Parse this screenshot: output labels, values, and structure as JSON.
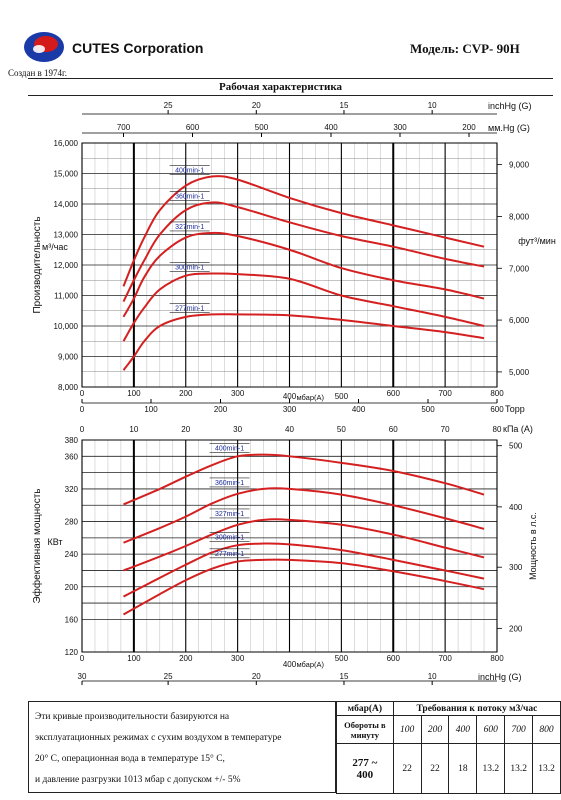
{
  "header": {
    "company": "CUTES Corporation",
    "founded": "Создан в 1974г.",
    "model": "Модель: CVP- 90H",
    "title": "Рабочая характеристика"
  },
  "colors": {
    "curve": "#d42020",
    "grid": "#000000",
    "logo_blue": "#1a3aa8",
    "logo_red": "#d41a1a"
  },
  "chart_data": [
    {
      "type": "line",
      "ylabel": "Производительность",
      "ylabel_unit": "м³/час",
      "ylabel_right": "фут³/мин",
      "xlabel": "мбар(А)",
      "xlim": [
        0,
        800
      ],
      "ylim": [
        8000,
        16000
      ],
      "y_ticks": [
        "8,000",
        "9,000",
        "10,000",
        "11,000",
        "12,000",
        "13,000",
        "14,000",
        "15,000",
        "16,000"
      ],
      "y_tick_values": [
        8000,
        9000,
        10000,
        11000,
        12000,
        13000,
        14000,
        15000,
        16000
      ],
      "y_right_ticks": [
        "5,000",
        "6,000",
        "7,000",
        "8,000",
        "9,000"
      ],
      "y_right_values": [
        8495,
        10194,
        11893,
        13592,
        15291
      ],
      "x_ticks": [
        "0",
        "100",
        "200",
        "300",
        "400",
        "500",
        "600",
        "700",
        "800"
      ],
      "x_tick_values": [
        0,
        100,
        200,
        300,
        400,
        500,
        600,
        700,
        800
      ],
      "top_axis_inchHg": {
        "label": "inchHg (G)",
        "ticks": [
          "25",
          "20",
          "15",
          "10"
        ],
        "mbar": [
          166,
          336,
          505,
          675
        ]
      },
      "top_axis_mmHg": {
        "label": "мм.Hg (G)",
        "ticks": [
          "700",
          "600",
          "500",
          "400",
          "300",
          "200"
        ],
        "mbar": [
          80,
          213,
          346,
          480,
          613,
          746
        ]
      },
      "bottom_axis_torr": {
        "label": "Торр",
        "ticks": [
          "0",
          "100",
          "200",
          "300",
          "400",
          "500",
          "600"
        ],
        "mbar": [
          0,
          133,
          267,
          400,
          533,
          667,
          800
        ]
      },
      "series": [
        {
          "name": "400min-1",
          "x": [
            80,
            100,
            120,
            150,
            200,
            250,
            300,
            400,
            500,
            600,
            700,
            775
          ],
          "values": [
            11300,
            12150,
            12900,
            13800,
            14600,
            14900,
            14800,
            14200,
            13700,
            13300,
            12900,
            12600
          ]
        },
        {
          "name": "360min-1",
          "x": [
            80,
            100,
            120,
            150,
            200,
            250,
            300,
            400,
            500,
            600,
            700,
            775
          ],
          "values": [
            10800,
            11500,
            12150,
            13000,
            13800,
            14050,
            13900,
            13400,
            12950,
            12600,
            12200,
            11950
          ]
        },
        {
          "name": "327min-1",
          "x": [
            80,
            100,
            120,
            150,
            200,
            250,
            300,
            400,
            500,
            600,
            700,
            775
          ],
          "values": [
            10300,
            10900,
            11600,
            12300,
            12900,
            13050,
            12950,
            12500,
            11900,
            11500,
            11200,
            10900
          ]
        },
        {
          "name": "300min-1",
          "x": [
            80,
            100,
            120,
            150,
            200,
            250,
            300,
            400,
            500,
            600,
            700,
            775
          ],
          "values": [
            9500,
            10100,
            10600,
            11200,
            11650,
            11720,
            11700,
            11550,
            11000,
            10650,
            10300,
            10000
          ]
        },
        {
          "name": "277min-1",
          "x": [
            80,
            100,
            120,
            150,
            200,
            250,
            300,
            400,
            500,
            600,
            700,
            775
          ],
          "values": [
            8550,
            9000,
            9500,
            10000,
            10300,
            10380,
            10380,
            10350,
            10200,
            10000,
            9800,
            9600
          ]
        }
      ]
    },
    {
      "type": "line",
      "ylabel": "Эффективная мощность",
      "ylabel_unit": "КВт",
      "ylabel_right": "Мощность в л.с.",
      "xlabel": "мбар(А)",
      "xlim": [
        0,
        800
      ],
      "ylim": [
        120,
        380
      ],
      "y_ticks": [
        "120",
        "160",
        "200",
        "240",
        "280",
        "320",
        "360",
        "380"
      ],
      "y_tick_values": [
        120,
        160,
        200,
        240,
        280,
        320,
        360,
        380
      ],
      "y_grid_values": [
        120,
        160,
        180,
        200,
        220,
        240,
        260,
        280,
        300,
        320,
        340,
        360,
        380
      ],
      "y_right_ticks": [
        "200",
        "300",
        "400",
        "500"
      ],
      "y_right_values": [
        149,
        224,
        298,
        373
      ],
      "x_ticks": [
        "0",
        "100",
        "200",
        "300",
        "400",
        "500",
        "600",
        "700",
        "800"
      ],
      "x_tick_values": [
        0,
        100,
        200,
        300,
        400,
        500,
        600,
        700,
        800
      ],
      "top_axis_kPa": {
        "label": "кПа (A)",
        "ticks": [
          "0",
          "10",
          "20",
          "30",
          "40",
          "50",
          "60",
          "70",
          "80"
        ],
        "mbar": [
          0,
          100,
          200,
          300,
          400,
          500,
          600,
          700,
          800
        ]
      },
      "bottom_axis_inchHg": {
        "label": "inchHg (G)",
        "ticks": [
          "30",
          "25",
          "20",
          "15",
          "10"
        ],
        "mbar": [
          0,
          166,
          336,
          505,
          675
        ]
      },
      "series": [
        {
          "name": "400min-1",
          "x": [
            80,
            150,
            200,
            250,
            300,
            350,
            400,
            500,
            600,
            700,
            775
          ],
          "values": [
            301,
            320,
            335,
            349,
            360,
            362,
            360,
            352,
            342,
            327,
            313
          ]
        },
        {
          "name": "360min-1",
          "x": [
            80,
            150,
            200,
            250,
            300,
            350,
            400,
            500,
            600,
            700,
            775
          ],
          "values": [
            254,
            272,
            286,
            302,
            314,
            320,
            320,
            313,
            300,
            284,
            271
          ]
        },
        {
          "name": "327min-1",
          "x": [
            80,
            150,
            200,
            250,
            300,
            350,
            400,
            500,
            600,
            700,
            775
          ],
          "values": [
            220,
            237,
            250,
            264,
            276,
            282,
            282,
            276,
            264,
            248,
            236
          ]
        },
        {
          "name": "300min-1",
          "x": [
            80,
            150,
            200,
            250,
            300,
            350,
            400,
            500,
            600,
            700,
            775
          ],
          "values": [
            188,
            211,
            227,
            242,
            251,
            253,
            252,
            245,
            233,
            220,
            210
          ]
        },
        {
          "name": "277min-1",
          "x": [
            80,
            150,
            200,
            250,
            300,
            350,
            400,
            500,
            600,
            700,
            775
          ],
          "values": [
            166,
            191,
            208,
            222,
            231,
            233,
            233,
            229,
            219,
            207,
            197
          ]
        }
      ]
    }
  ],
  "notes": [
    "Эти кривые производительности базируются на",
    "эксплуатационных режимах с сухим воздухом в температуре",
    "20° С, операционная вода в температуре 15° С,",
    "и давление разгрузки 1013 мбар с допуском +/- 5%"
  ],
  "requirements": {
    "head_pressure": "мбар(А)",
    "head_title": "Требования к потоку м3/час",
    "rpm_label": "Обороты в минуту",
    "pressures": [
      "100",
      "200",
      "400",
      "600",
      "700",
      "800"
    ],
    "rpm_value": "277 ~ 400",
    "flows": [
      "22",
      "22",
      "18",
      "13.2",
      "13.2",
      "13.2"
    ]
  }
}
